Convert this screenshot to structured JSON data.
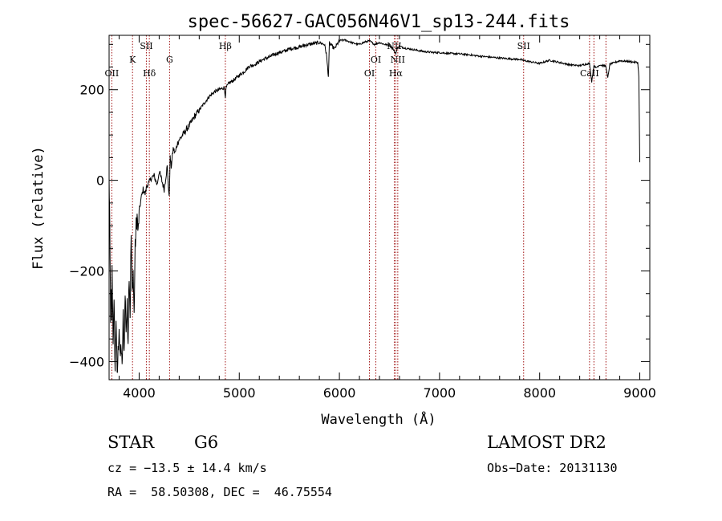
{
  "chart_data": {
    "type": "line",
    "title": "spec-56627-GAC056N46V1_sp13-244.fits",
    "xlabel": "Wavelength (Å)",
    "ylabel": "Flux (relative)",
    "xlim": [
      3700,
      9100
    ],
    "ylim": [
      -440,
      320
    ],
    "x_ticks": [
      4000,
      5000,
      6000,
      7000,
      8000,
      9000
    ],
    "y_ticks": [
      -400,
      -200,
      0,
      200
    ],
    "x_minor_step": 200,
    "y_minor_step": 50,
    "spectral_lines": [
      {
        "name": "OII",
        "wavelength": 3727,
        "row": "low"
      },
      {
        "name": "K",
        "wavelength": 3934,
        "row": "mid"
      },
      {
        "name": "SII",
        "wavelength": 4072,
        "row": "high"
      },
      {
        "name": "Hδ",
        "wavelength": 4102,
        "row": "low"
      },
      {
        "name": "G",
        "wavelength": 4304,
        "row": "mid"
      },
      {
        "name": "Hβ",
        "wavelength": 4861,
        "row": "high"
      },
      {
        "name": "OI",
        "wavelength": 6300,
        "row": "low"
      },
      {
        "name": "OI",
        "wavelength": 6364,
        "row": "mid"
      },
      {
        "name": "NII",
        "wavelength": 6548,
        "row": "high"
      },
      {
        "name": "Hα",
        "wavelength": 6563,
        "row": "low"
      },
      {
        "name": "NII",
        "wavelength": 6583,
        "row": "mid"
      },
      {
        "name": "SII",
        "wavelength": 7840,
        "row": "high"
      },
      {
        "name": "CaII",
        "wavelength": 8498,
        "row": "low"
      },
      {
        "name": "CaII",
        "wavelength": 8542,
        "row": "low"
      },
      {
        "name": "CaII",
        "wavelength": 8662,
        "row": "low"
      }
    ],
    "series": [
      {
        "name": "flux",
        "x": [
          3700,
          3705,
          3710,
          3715,
          3720,
          3725,
          3730,
          3740,
          3750,
          3760,
          3770,
          3780,
          3790,
          3800,
          3810,
          3820,
          3830,
          3840,
          3850,
          3860,
          3870,
          3880,
          3890,
          3900,
          3910,
          3920,
          3930,
          3940,
          3950,
          3960,
          3970,
          3980,
          3990,
          4000,
          4020,
          4040,
          4060,
          4080,
          4100,
          4120,
          4150,
          4180,
          4200,
          4220,
          4250,
          4280,
          4300,
          4310,
          4320,
          4340,
          4360,
          4380,
          4400,
          4420,
          4450,
          4480,
          4500,
          4550,
          4600,
          4650,
          4700,
          4750,
          4800,
          4850,
          4861,
          4870,
          4900,
          4950,
          5000,
          5050,
          5100,
          5150,
          5200,
          5250,
          5300,
          5350,
          5400,
          5450,
          5500,
          5550,
          5600,
          5650,
          5700,
          5750,
          5800,
          5850,
          5870,
          5890,
          5900,
          5920,
          5950,
          6000,
          6050,
          6100,
          6150,
          6200,
          6250,
          6300,
          6350,
          6400,
          6450,
          6500,
          6540,
          6563,
          6580,
          6600,
          6650,
          6700,
          6750,
          6800,
          6850,
          6900,
          6950,
          7000,
          7100,
          7200,
          7300,
          7400,
          7500,
          7600,
          7700,
          7800,
          7850,
          7900,
          8000,
          8100,
          8200,
          8300,
          8400,
          8450,
          8498,
          8520,
          8542,
          8560,
          8600,
          8620,
          8662,
          8680,
          8700,
          8800,
          8900,
          8980,
          8990,
          9000
        ],
        "y": [
          0,
          -60,
          -180,
          -300,
          -250,
          -320,
          -200,
          -350,
          -280,
          -420,
          -300,
          -440,
          -380,
          -320,
          -400,
          -360,
          -420,
          -300,
          -380,
          -250,
          -330,
          -280,
          -350,
          -200,
          -300,
          -120,
          -250,
          -200,
          -300,
          -150,
          -100,
          -80,
          -120,
          -70,
          -40,
          -20,
          -30,
          -10,
          -5,
          5,
          10,
          -10,
          20,
          5,
          -20,
          30,
          -40,
          50,
          30,
          70,
          60,
          80,
          90,
          95,
          105,
          115,
          120,
          140,
          155,
          170,
          185,
          195,
          200,
          205,
          185,
          205,
          215,
          222,
          232,
          240,
          252,
          255,
          262,
          268,
          272,
          278,
          282,
          285,
          290,
          292,
          294,
          298,
          300,
          302,
          304,
          300,
          280,
          230,
          302,
          298,
          290,
          308,
          310,
          306,
          302,
          300,
          305,
          308,
          300,
          304,
          300,
          298,
          288,
          280,
          292,
          296,
          292,
          290,
          288,
          286,
          284,
          283,
          282,
          282,
          280,
          279,
          277,
          274,
          272,
          270,
          268,
          267,
          264,
          262,
          258,
          265,
          260,
          255,
          253,
          256,
          258,
          218,
          254,
          248,
          255,
          254,
          252,
          225,
          256,
          264,
          262,
          260,
          230,
          40
        ]
      }
    ]
  },
  "info": {
    "object_class": "STAR",
    "subclass": "G6",
    "redshift": "cz = −13.5 ± 14.4 km/s",
    "coords": "RA =  58.50308, DEC =  46.75554",
    "survey": "LAMOST DR2",
    "obs_date": "Obs−Date: 20131130"
  }
}
